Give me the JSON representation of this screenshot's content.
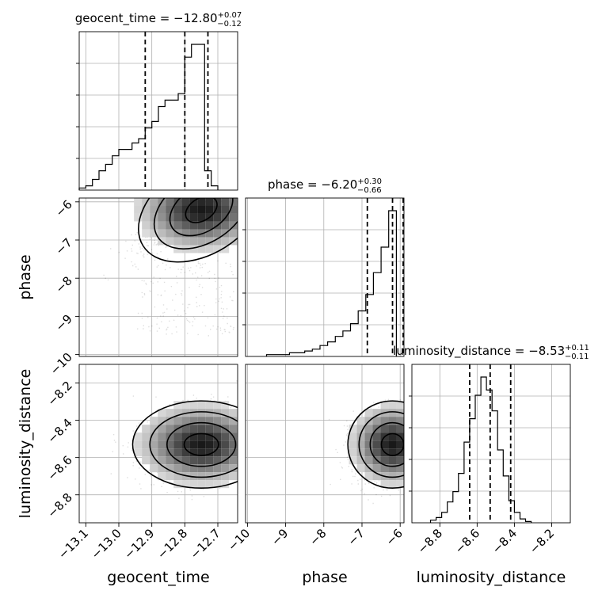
{
  "chart_data": {
    "type": "corner",
    "parameters": [
      "geocent_time",
      "phase",
      "luminosity_distance"
    ],
    "titles": [
      {
        "name": "geocent_time",
        "value": "−12.80",
        "plus": "+0.07",
        "minus": "−0.12"
      },
      {
        "name": "phase",
        "value": "−6.20",
        "plus": "+0.30",
        "minus": "−0.66"
      },
      {
        "name": "luminosity_distance",
        "value": "−8.53",
        "plus": "+0.11",
        "minus": "−0.11"
      }
    ],
    "ranges": [
      [
        -13.12,
        -12.64
      ],
      [
        -10.05,
        -5.9
      ],
      [
        -8.95,
        -8.1
      ]
    ],
    "ticks": [
      [
        -13.1,
        -13.0,
        -12.9,
        -12.8,
        -12.7
      ],
      [
        -10,
        -9,
        -8,
        -7,
        -6
      ],
      [
        -8.8,
        -8.6,
        -8.4,
        -8.2
      ]
    ],
    "tick_labels": [
      [
        "−13.1",
        "−13.0",
        "−12.9",
        "−12.8",
        "−12.7"
      ],
      [
        "−10",
        "−9",
        "−8",
        "−7",
        "−6"
      ],
      [
        "−8.8",
        "−8.6",
        "−8.4",
        "−8.2"
      ]
    ],
    "quantiles": [
      [
        -12.92,
        -12.8,
        -12.73
      ],
      [
        -6.86,
        -6.2,
        -5.9
      ],
      [
        -8.64,
        -8.53,
        -8.42
      ]
    ],
    "histograms": [
      {
        "bin_edges_start": -13.12,
        "bin_width": 0.02,
        "counts": [
          1,
          2,
          5,
          9,
          12,
          16,
          19,
          19,
          22,
          24,
          29,
          32,
          39,
          42,
          42,
          45,
          62,
          68,
          68,
          9,
          2
        ]
      },
      {
        "bin_edges_start": -9.5,
        "bin_width": 0.2,
        "counts": [
          1,
          1,
          1,
          2,
          2,
          3,
          4,
          6,
          8,
          11,
          14,
          18,
          25,
          34,
          46,
          60,
          80
        ]
      },
      {
        "bin_edges_start": -8.85,
        "bin_width": 0.03,
        "counts": [
          2,
          4,
          8,
          16,
          24,
          38,
          62,
          80,
          98,
          112,
          102,
          86,
          56,
          36,
          17,
          8,
          3,
          1
        ]
      }
    ],
    "contour_levels_sigma": [
      0.5,
      1.0,
      1.5,
      2.0
    ]
  }
}
